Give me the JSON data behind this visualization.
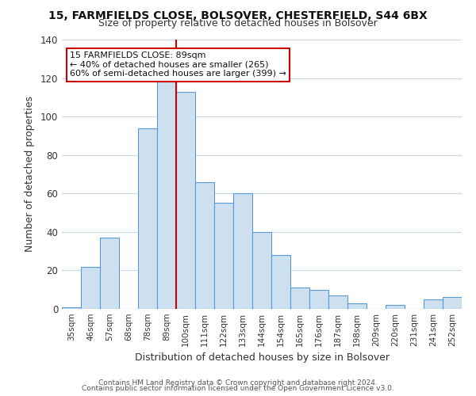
{
  "title": "15, FARMFIELDS CLOSE, BOLSOVER, CHESTERFIELD, S44 6BX",
  "subtitle": "Size of property relative to detached houses in Bolsover",
  "xlabel": "Distribution of detached houses by size in Bolsover",
  "ylabel": "Number of detached properties",
  "bar_labels": [
    "35sqm",
    "46sqm",
    "57sqm",
    "68sqm",
    "78sqm",
    "89sqm",
    "100sqm",
    "111sqm",
    "122sqm",
    "133sqm",
    "144sqm",
    "154sqm",
    "165sqm",
    "176sqm",
    "187sqm",
    "198sqm",
    "209sqm",
    "220sqm",
    "231sqm",
    "241sqm",
    "252sqm"
  ],
  "bar_values": [
    1,
    22,
    37,
    0,
    94,
    118,
    113,
    66,
    55,
    60,
    40,
    28,
    11,
    10,
    7,
    3,
    0,
    2,
    0,
    5,
    6
  ],
  "bar_color_fill": "#cde0f0",
  "bar_color_edge": "#5b9bd5",
  "highlight_line_color": "#cc0000",
  "annotation_text": "15 FARMFIELDS CLOSE: 89sqm\n← 40% of detached houses are smaller (265)\n60% of semi-detached houses are larger (399) →",
  "annotation_box_edgecolor": "#cc0000",
  "annotation_box_facecolor": "#ffffff",
  "ylim": [
    0,
    140
  ],
  "yticks": [
    0,
    20,
    40,
    60,
    80,
    100,
    120,
    140
  ],
  "footer_line1": "Contains HM Land Registry data © Crown copyright and database right 2024.",
  "footer_line2": "Contains public sector information licensed under the Open Government Licence v3.0.",
  "background_color": "#ffffff",
  "grid_color": "#c8d8e8"
}
